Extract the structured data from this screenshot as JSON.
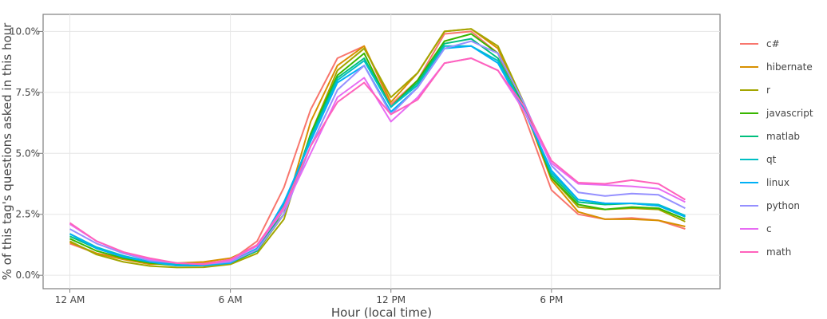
{
  "chart_data": {
    "type": "line",
    "xlabel": "Hour (local time)",
    "ylabel": "% of this tag's questions asked in this hour",
    "xlim": [
      -1,
      24.3
    ],
    "ylim": [
      -0.55,
      10.7
    ],
    "x_ticks": [
      {
        "value": 0,
        "label": "12 AM"
      },
      {
        "value": 6,
        "label": "6 AM"
      },
      {
        "value": 12,
        "label": "12 PM"
      },
      {
        "value": 18,
        "label": "6 PM"
      }
    ],
    "y_ticks": [
      {
        "value": 0,
        "label": "0.0%"
      },
      {
        "value": 2.5,
        "label": "2.5%"
      },
      {
        "value": 5,
        "label": "5.0%"
      },
      {
        "value": 7.5,
        "label": "7.5%"
      },
      {
        "value": 10,
        "label": "10.0%"
      }
    ],
    "grid": true,
    "legend_position": "right",
    "x": [
      0,
      1,
      2,
      3,
      4,
      5,
      6,
      7,
      8,
      9,
      10,
      11,
      12,
      13,
      14,
      15,
      16,
      17,
      18,
      19,
      20,
      21,
      22,
      23
    ],
    "series": [
      {
        "name": "c#",
        "color": "#F8766D",
        "values": [
          1.3,
          0.9,
          0.7,
          0.5,
          0.45,
          0.5,
          0.6,
          1.4,
          3.6,
          6.8,
          8.9,
          9.4,
          7.0,
          8.0,
          9.9,
          10.0,
          9.1,
          6.5,
          3.5,
          2.5,
          2.3,
          2.35,
          2.25,
          1.9
        ]
      },
      {
        "name": "hibernate",
        "color": "#D89000",
        "values": [
          1.35,
          0.9,
          0.65,
          0.45,
          0.5,
          0.55,
          0.7,
          1.2,
          2.5,
          6.3,
          8.6,
          9.4,
          7.1,
          8.3,
          10.0,
          10.1,
          9.3,
          6.8,
          3.9,
          2.6,
          2.3,
          2.3,
          2.25,
          2.0
        ]
      },
      {
        "name": "r",
        "color": "#A3A500",
        "values": [
          1.4,
          0.85,
          0.55,
          0.38,
          0.32,
          0.33,
          0.45,
          0.9,
          2.3,
          5.8,
          8.4,
          9.3,
          7.3,
          8.3,
          10.0,
          10.1,
          9.4,
          7.0,
          4.0,
          2.8,
          2.7,
          2.75,
          2.7,
          2.2
        ]
      },
      {
        "name": "javascript",
        "color": "#39B600",
        "values": [
          1.5,
          1.0,
          0.7,
          0.5,
          0.4,
          0.4,
          0.5,
          1.0,
          2.5,
          5.8,
          8.2,
          9.1,
          6.9,
          8.0,
          9.6,
          9.9,
          9.1,
          6.9,
          4.0,
          2.9,
          2.7,
          2.8,
          2.75,
          2.3
        ]
      },
      {
        "name": "matlab",
        "color": "#00BF7D",
        "values": [
          1.6,
          1.1,
          0.75,
          0.55,
          0.45,
          0.45,
          0.55,
          1.0,
          2.7,
          5.7,
          8.1,
          8.9,
          6.9,
          7.9,
          9.5,
          9.7,
          8.9,
          6.8,
          4.1,
          3.0,
          2.9,
          2.95,
          2.85,
          2.4
        ]
      },
      {
        "name": "qt",
        "color": "#00BFC4",
        "values": [
          1.7,
          1.15,
          0.8,
          0.55,
          0.45,
          0.45,
          0.55,
          1.1,
          2.9,
          5.6,
          8.0,
          8.8,
          6.9,
          7.8,
          9.4,
          9.4,
          8.8,
          6.8,
          4.2,
          3.1,
          2.95,
          2.95,
          2.9,
          2.45
        ]
      },
      {
        "name": "linux",
        "color": "#00B0F6",
        "values": [
          1.7,
          1.1,
          0.75,
          0.55,
          0.4,
          0.4,
          0.5,
          1.1,
          3.0,
          5.5,
          7.9,
          8.6,
          6.7,
          7.7,
          9.3,
          9.4,
          8.7,
          6.7,
          4.3,
          3.1,
          2.95,
          2.95,
          2.85,
          2.4
        ]
      },
      {
        "name": "python",
        "color": "#9590FF",
        "values": [
          1.9,
          1.3,
          0.9,
          0.6,
          0.5,
          0.45,
          0.55,
          1.05,
          2.5,
          5.3,
          7.6,
          8.6,
          6.6,
          7.7,
          9.3,
          9.6,
          9.1,
          7.0,
          4.5,
          3.4,
          3.25,
          3.35,
          3.3,
          2.75
        ]
      },
      {
        "name": "c",
        "color": "#E76BF3",
        "values": [
          2.1,
          1.4,
          0.95,
          0.65,
          0.5,
          0.45,
          0.6,
          1.2,
          2.7,
          5.0,
          7.3,
          8.1,
          6.3,
          7.3,
          8.7,
          8.9,
          8.4,
          6.7,
          4.6,
          3.75,
          3.7,
          3.65,
          3.55,
          3.0
        ]
      },
      {
        "name": "math",
        "color": "#FF62BC",
        "values": [
          2.15,
          1.4,
          0.95,
          0.7,
          0.5,
          0.45,
          0.65,
          1.25,
          2.8,
          5.3,
          7.1,
          7.9,
          6.6,
          7.2,
          8.7,
          8.9,
          8.4,
          6.9,
          4.7,
          3.8,
          3.75,
          3.9,
          3.75,
          3.1
        ]
      }
    ]
  }
}
